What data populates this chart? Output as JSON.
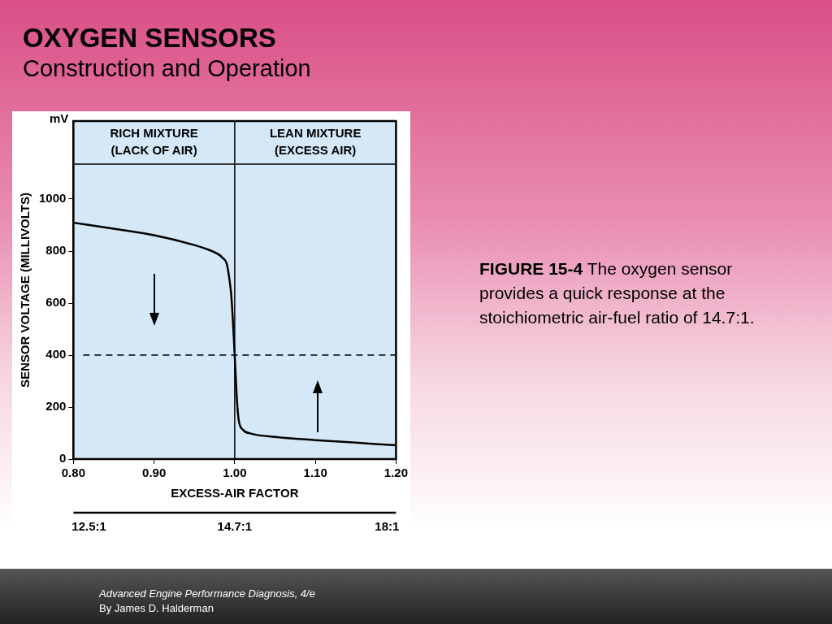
{
  "chart_data": {
    "type": "line",
    "title": "OXYGEN SENSORS",
    "subtitle": "Construction and Operation",
    "xlabel": "EXCESS-AIR FACTOR",
    "ylabel": "SENSOR VOLTAGE (MILLIVOLTS)",
    "series": [
      {
        "color": "#000000",
        "x": [
          0.8,
          0.85,
          0.9,
          0.95,
          0.97,
          0.98,
          0.985,
          0.99,
          0.993,
          0.996,
          1.0,
          1.003,
          1.005,
          1.01,
          1.02,
          1.05,
          1.1,
          1.15,
          1.2
        ],
        "values": [
          909,
          886,
          861,
          823,
          802,
          787,
          774,
          752,
          701,
          620,
          397,
          215,
          149,
          113,
          98,
          85,
          73,
          63,
          53
        ]
      }
    ],
    "xlim": [
      0.8,
      1.2
    ],
    "xticks": [
      {
        "value": 0.8,
        "label": "0.80"
      },
      {
        "value": 0.9,
        "label": "0.90"
      },
      {
        "value": 1.0,
        "label": "1.00"
      },
      {
        "value": 1.1,
        "label": "1.10"
      },
      {
        "value": 1.2,
        "label": "1.20"
      }
    ],
    "ylim": [
      0,
      1300
    ],
    "yticks": [
      0,
      200,
      400,
      600,
      800,
      1000
    ],
    "grid": false,
    "legend": false,
    "marker": "none",
    "line_style": "solid",
    "ref_lines": [
      {
        "axis": "y",
        "value": 400,
        "line_style": "dashed"
      },
      {
        "axis": "x",
        "value": 1.0,
        "line_style": "solid"
      },
      {
        "axis": "y",
        "value": 1134,
        "line_style": "solid"
      }
    ],
    "bands": [
      {
        "axis": "x",
        "from": 0.8,
        "to": 1.0,
        "label": "RICH MIXTURE\n(LACK OF AIR)",
        "color": "#d4e8f7"
      },
      {
        "axis": "x",
        "from": 1.0,
        "to": 1.2,
        "label": "LEAN MIXTURE\n(EXCESS AIR)",
        "color": "#d4e8f7"
      }
    ],
    "annotations": [
      "mV",
      "12.5:1",
      "14.7:1",
      "18:1",
      "FIGURE 15-4",
      "The oxygen sensor provides a quick response at the stoichiometric air-fuel ratio of 14.7:1.",
      "Advanced Engine Performance Diagnosis, 4/e",
      "By James D. Halderman"
    ]
  }
}
